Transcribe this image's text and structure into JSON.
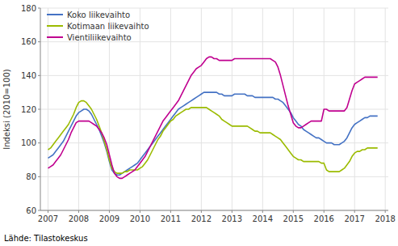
{
  "chart_data": {
    "type": "line",
    "y_label": "Indeksi (2010=100)",
    "source": "Lähde: Tilastokeskus",
    "xlim": [
      2006.75,
      2018.1
    ],
    "xticks": [
      2007,
      2008,
      2009,
      2010,
      2011,
      2012,
      2013,
      2014,
      2015,
      2016,
      2017,
      2018
    ],
    "ylim": [
      60,
      180
    ],
    "yticks": [
      60,
      80,
      100,
      120,
      140,
      160,
      180
    ],
    "grid": true,
    "legend": "upper left",
    "x": [
      2007,
      2007.0833333333,
      2007.1666666667,
      2007.25,
      2007.3333333333,
      2007.4166666667,
      2007.5,
      2007.5833333333,
      2007.6666666667,
      2007.75,
      2007.8333333333,
      2007.9166666667,
      2008,
      2008.0833333333,
      2008.1666666667,
      2008.25,
      2008.3333333333,
      2008.4166666667,
      2008.5,
      2008.5833333333,
      2008.6666666667,
      2008.75,
      2008.8333333333,
      2008.9166666667,
      2009,
      2009.0833333333,
      2009.1666666667,
      2009.25,
      2009.3333333333,
      2009.4166666667,
      2009.5,
      2009.5833333333,
      2009.6666666667,
      2009.75,
      2009.8333333333,
      2009.9166666667,
      2010,
      2010.0833333333,
      2010.1666666667,
      2010.25,
      2010.3333333333,
      2010.4166666667,
      2010.5,
      2010.5833333333,
      2010.6666666667,
      2010.75,
      2010.8333333333,
      2010.9166666667,
      2011,
      2011.0833333333,
      2011.1666666667,
      2011.25,
      2011.3333333333,
      2011.4166666667,
      2011.5,
      2011.5833333333,
      2011.6666666667,
      2011.75,
      2011.8333333333,
      2011.9166666667,
      2012,
      2012.0833333333,
      2012.1666666667,
      2012.25,
      2012.3333333333,
      2012.4166666667,
      2012.5,
      2012.5833333333,
      2012.6666666667,
      2012.75,
      2012.8333333333,
      2012.9166666667,
      2013,
      2013.0833333333,
      2013.1666666667,
      2013.25,
      2013.3333333333,
      2013.4166666667,
      2013.5,
      2013.5833333333,
      2013.6666666667,
      2013.75,
      2013.8333333333,
      2013.9166666667,
      2014,
      2014.0833333333,
      2014.1666666667,
      2014.25,
      2014.3333333333,
      2014.4166666667,
      2014.5,
      2014.5833333333,
      2014.6666666667,
      2014.75,
      2014.8333333333,
      2014.9166666667,
      2015,
      2015.0833333333,
      2015.1666666667,
      2015.25,
      2015.3333333333,
      2015.4166666667,
      2015.5,
      2015.5833333333,
      2015.6666666667,
      2015.75,
      2015.8333333333,
      2015.9166666667,
      2016,
      2016.0833333333,
      2016.1666666667,
      2016.25,
      2016.3333333333,
      2016.4166666667,
      2016.5,
      2016.5833333333,
      2016.6666666667,
      2016.75,
      2016.8333333333,
      2016.9166666667,
      2017,
      2017.0833333333,
      2017.1666666667,
      2017.25,
      2017.3333333333,
      2017.4166666667,
      2017.5,
      2017.5833333333,
      2017.6666666667,
      2017.75
    ],
    "series": [
      {
        "name": "Koko liikevaihto",
        "color": "#4472c4",
        "values": [
          91,
          92,
          93,
          95,
          97,
          99,
          101,
          104,
          107,
          110,
          113,
          116,
          118,
          119,
          120,
          120,
          119,
          117,
          114,
          111,
          108,
          104,
          100,
          95,
          89,
          84,
          82,
          81,
          81,
          82,
          83,
          84,
          85,
          86,
          87,
          88,
          90,
          92,
          94,
          96,
          98,
          100,
          102,
          104,
          106,
          108,
          110,
          112,
          114,
          116,
          118,
          120,
          121,
          122,
          123,
          124,
          125,
          126,
          127,
          128,
          129,
          130,
          130,
          130,
          130,
          130,
          130,
          129,
          129,
          128,
          128,
          128,
          128,
          129,
          129,
          129,
          129,
          129,
          128,
          128,
          128,
          127,
          127,
          127,
          127,
          127,
          127,
          127,
          127,
          126,
          126,
          125,
          124,
          122,
          120,
          118,
          115,
          113,
          111,
          110,
          108,
          107,
          106,
          105,
          104,
          103,
          103,
          102,
          101,
          100,
          100,
          100,
          99,
          99,
          99,
          100,
          101,
          103,
          106,
          109,
          111,
          112,
          113,
          114,
          115,
          115,
          116,
          116,
          116,
          116
        ]
      },
      {
        "name": "Kotimaan liikevaihto",
        "color": "#9bbb00",
        "values": [
          96,
          97,
          99,
          101,
          103,
          105,
          107,
          109,
          111,
          114,
          117,
          121,
          124,
          125,
          125,
          124,
          122,
          120,
          117,
          114,
          110,
          106,
          101,
          96,
          90,
          85,
          83,
          82,
          82,
          82,
          83,
          83,
          84,
          84,
          84,
          84,
          85,
          86,
          88,
          90,
          93,
          96,
          99,
          102,
          104,
          107,
          109,
          111,
          113,
          114,
          116,
          117,
          118,
          119,
          120,
          120,
          121,
          121,
          121,
          121,
          121,
          121,
          121,
          120,
          119,
          118,
          117,
          116,
          114,
          113,
          112,
          111,
          110,
          110,
          110,
          110,
          110,
          110,
          110,
          109,
          108,
          107,
          107,
          106,
          106,
          106,
          106,
          106,
          105,
          104,
          103,
          102,
          100,
          98,
          96,
          94,
          92,
          91,
          90,
          90,
          89,
          89,
          89,
          89,
          89,
          89,
          89,
          88,
          88,
          84,
          83,
          83,
          83,
          83,
          83,
          84,
          85,
          87,
          89,
          92,
          94,
          95,
          95,
          96,
          96,
          97,
          97,
          97,
          97,
          97
        ]
      },
      {
        "name": "Vientiliikevaihto",
        "color": "#c0008f",
        "values": [
          85,
          86,
          87,
          89,
          91,
          93,
          96,
          99,
          102,
          106,
          109,
          112,
          113,
          113,
          113,
          113,
          113,
          112,
          111,
          110,
          108,
          106,
          103,
          99,
          93,
          87,
          82,
          80,
          79,
          79,
          80,
          81,
          82,
          83,
          84,
          86,
          88,
          90,
          92,
          95,
          98,
          101,
          104,
          107,
          110,
          113,
          115,
          117,
          119,
          121,
          123,
          125,
          128,
          131,
          134,
          137,
          140,
          142,
          144,
          145,
          146,
          148,
          150,
          151,
          151,
          150,
          150,
          149,
          149,
          149,
          149,
          149,
          149,
          150,
          150,
          150,
          150,
          150,
          150,
          150,
          150,
          150,
          150,
          150,
          150,
          150,
          150,
          150,
          149,
          148,
          145,
          140,
          134,
          128,
          122,
          117,
          112,
          110,
          109,
          109,
          110,
          111,
          112,
          113,
          113,
          113,
          113,
          113,
          120,
          120,
          119,
          119,
          119,
          119,
          119,
          119,
          119,
          121,
          126,
          131,
          135,
          136,
          137,
          138,
          139,
          139,
          139,
          139,
          139,
          139
        ]
      }
    ]
  }
}
